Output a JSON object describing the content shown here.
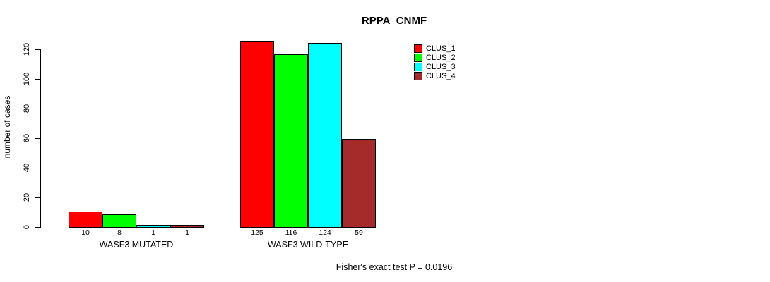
{
  "chart_data": {
    "type": "bar",
    "title": "RPPA_CNMF",
    "xlabel": "",
    "ylabel": "number of cases",
    "ylim": [
      0,
      120
    ],
    "yticks": [
      0,
      20,
      40,
      60,
      80,
      100,
      120
    ],
    "categories": [
      "WASF3 MUTATED",
      "WASF3 WILD-TYPE"
    ],
    "series": [
      {
        "name": "CLUS_1",
        "color": "#FF0000",
        "values": [
          10,
          125
        ]
      },
      {
        "name": "CLUS_2",
        "color": "#00FF00",
        "values": [
          8,
          116
        ]
      },
      {
        "name": "CLUS_3",
        "color": "#00FFFF",
        "values": [
          1,
          124
        ]
      },
      {
        "name": "CLUS_4",
        "color": "#A52A2A",
        "values": [
          1,
          59
        ]
      }
    ],
    "bar_value_labels": [
      [
        "10",
        "8",
        "1",
        "1"
      ],
      [
        "125",
        "116",
        "124",
        "59"
      ]
    ],
    "legend_position": "top-right",
    "grid": false,
    "annotation": "Fisher's exact test P = 0.0196"
  }
}
